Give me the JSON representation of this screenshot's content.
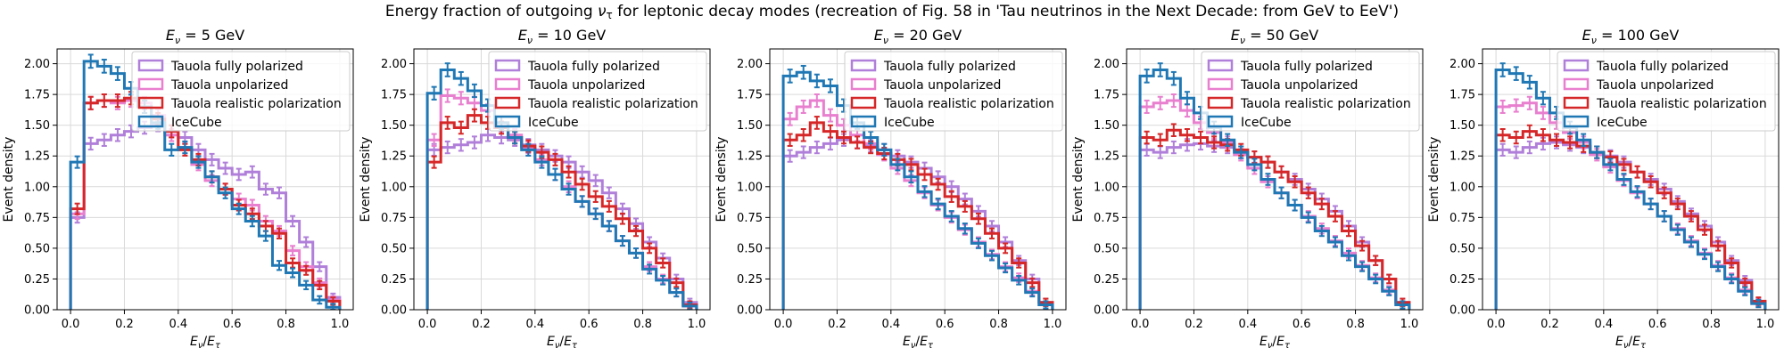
{
  "figure": {
    "suptitle_pre": "Energy fraction of outgoing ",
    "suptitle_nu": "ν",
    "suptitle_sub": "τ",
    "suptitle_post": " for leptonic decay modes (recreation of Fig. 58 in 'Tau neutrinos in the Next Decade: from GeV to EeV')"
  },
  "chart_data": [
    {
      "type": "histogram",
      "title": "E_ν = 5 GeV",
      "title_energy": "5 GeV",
      "xlabel": "E_ν/E_τ",
      "ylabel": "Event density",
      "xlim": [
        -0.05,
        1.05
      ],
      "ylim": [
        0,
        2.12
      ],
      "grid": true,
      "legend_placement": "top-right",
      "xticks": [
        "0.0",
        "0.2",
        "0.4",
        "0.6",
        "0.8",
        "1.0"
      ],
      "yticks": [
        "0.00",
        "0.25",
        "0.50",
        "0.75",
        "1.00",
        "1.25",
        "1.50",
        "1.75",
        "2.00"
      ],
      "bin_edges": [
        0,
        0.05,
        0.1,
        0.15,
        0.2,
        0.25,
        0.3,
        0.35,
        0.4,
        0.45,
        0.5,
        0.55,
        0.6,
        0.65,
        0.7,
        0.75,
        0.8,
        0.85,
        0.9,
        0.95,
        1.0
      ],
      "series": [
        {
          "name": "Tauola fully polarized",
          "color": "#b07fd9",
          "values": [
            0.75,
            1.35,
            1.38,
            1.42,
            1.45,
            1.48,
            1.5,
            1.45,
            1.4,
            1.3,
            1.22,
            1.15,
            1.1,
            1.12,
            0.98,
            0.95,
            0.72,
            0.55,
            0.35,
            0.1
          ]
        },
        {
          "name": "Tauola unpolarized",
          "color": "#e87fcf",
          "values": [
            0.78,
            1.68,
            1.7,
            1.68,
            1.7,
            1.68,
            1.58,
            1.42,
            1.32,
            1.18,
            1.05,
            0.98,
            0.9,
            0.85,
            0.72,
            0.64,
            0.48,
            0.35,
            0.22,
            0.08
          ]
        },
        {
          "name": "Tauola realistic polarization",
          "color": "#d62728",
          "values": [
            0.82,
            1.68,
            1.7,
            1.7,
            1.72,
            1.65,
            1.55,
            1.45,
            1.3,
            1.22,
            1.08,
            0.98,
            0.85,
            0.78,
            0.68,
            0.62,
            0.38,
            0.32,
            0.2,
            0.07
          ]
        },
        {
          "name": "IceCube",
          "color": "#1f77b4",
          "values": [
            1.2,
            2.02,
            1.98,
            1.92,
            1.8,
            1.65,
            1.52,
            1.3,
            1.32,
            1.2,
            1.08,
            0.95,
            0.82,
            0.72,
            0.6,
            0.36,
            0.3,
            0.2,
            0.08,
            0.02
          ]
        }
      ]
    },
    {
      "type": "histogram",
      "title": "E_ν = 10 GeV",
      "title_energy": "10 GeV",
      "xlabel": "E_ν/E_τ",
      "ylabel": "Event density",
      "xlim": [
        -0.05,
        1.05
      ],
      "ylim": [
        0,
        2.12
      ],
      "grid": true,
      "legend_placement": "top-right",
      "xticks": [
        "0.0",
        "0.2",
        "0.4",
        "0.6",
        "0.8",
        "1.0"
      ],
      "yticks": [
        "0.00",
        "0.25",
        "0.50",
        "0.75",
        "1.00",
        "1.25",
        "1.50",
        "1.75",
        "2.00"
      ],
      "bin_edges": [
        0,
        0.05,
        0.1,
        0.15,
        0.2,
        0.25,
        0.3,
        0.35,
        0.4,
        0.45,
        0.5,
        0.55,
        0.6,
        0.65,
        0.7,
        0.75,
        0.8,
        0.85,
        0.9,
        0.95,
        1.0
      ],
      "series": [
        {
          "name": "Tauola fully polarized",
          "color": "#b07fd9",
          "values": [
            1.3,
            1.32,
            1.34,
            1.36,
            1.42,
            1.4,
            1.38,
            1.34,
            1.3,
            1.25,
            1.2,
            1.12,
            1.05,
            0.95,
            0.82,
            0.7,
            0.55,
            0.42,
            0.25,
            0.06
          ]
        },
        {
          "name": "Tauola unpolarized",
          "color": "#e87fcf",
          "values": [
            1.38,
            1.74,
            1.72,
            1.68,
            1.62,
            1.52,
            1.42,
            1.32,
            1.22,
            1.1,
            1.0,
            0.88,
            0.78,
            0.68,
            0.56,
            0.46,
            0.35,
            0.25,
            0.14,
            0.03
          ]
        },
        {
          "name": "Tauola realistic polarization",
          "color": "#d62728",
          "values": [
            1.2,
            1.52,
            1.48,
            1.58,
            1.52,
            1.48,
            1.4,
            1.33,
            1.28,
            1.22,
            1.12,
            1.02,
            0.92,
            0.84,
            0.74,
            0.64,
            0.5,
            0.38,
            0.22,
            0.04
          ]
        },
        {
          "name": "IceCube",
          "color": "#1f77b4",
          "values": [
            1.76,
            1.95,
            1.88,
            1.78,
            1.66,
            1.52,
            1.4,
            1.3,
            1.2,
            1.1,
            0.98,
            0.88,
            0.78,
            0.68,
            0.56,
            0.46,
            0.33,
            0.24,
            0.14,
            0.03
          ]
        }
      ]
    },
    {
      "type": "histogram",
      "title": "E_ν = 20 GeV",
      "title_energy": "20 GeV",
      "xlabel": "E_ν/E_τ",
      "ylabel": "Event density",
      "xlim": [
        -0.05,
        1.05
      ],
      "ylim": [
        0,
        2.12
      ],
      "grid": true,
      "legend_placement": "top-right",
      "xticks": [
        "0.0",
        "0.2",
        "0.4",
        "0.6",
        "0.8",
        "1.0"
      ],
      "yticks": [
        "0.00",
        "0.25",
        "0.50",
        "0.75",
        "1.00",
        "1.25",
        "1.50",
        "1.75",
        "2.00"
      ],
      "bin_edges": [
        0,
        0.05,
        0.1,
        0.15,
        0.2,
        0.25,
        0.3,
        0.35,
        0.4,
        0.45,
        0.5,
        0.55,
        0.6,
        0.65,
        0.7,
        0.75,
        0.8,
        0.85,
        0.9,
        0.95,
        1.0
      ],
      "series": [
        {
          "name": "Tauola fully polarized",
          "color": "#b07fd9",
          "values": [
            1.25,
            1.28,
            1.32,
            1.35,
            1.38,
            1.36,
            1.33,
            1.3,
            1.25,
            1.2,
            1.15,
            1.08,
            1.0,
            0.9,
            0.8,
            0.68,
            0.55,
            0.4,
            0.25,
            0.06
          ]
        },
        {
          "name": "Tauola unpolarized",
          "color": "#e87fcf",
          "values": [
            1.55,
            1.65,
            1.7,
            1.58,
            1.5,
            1.42,
            1.35,
            1.26,
            1.15,
            1.05,
            0.95,
            0.85,
            0.75,
            0.65,
            0.55,
            0.45,
            0.35,
            0.26,
            0.15,
            0.04
          ]
        },
        {
          "name": "Tauola realistic polarization",
          "color": "#d62728",
          "values": [
            1.38,
            1.42,
            1.52,
            1.45,
            1.4,
            1.36,
            1.32,
            1.27,
            1.22,
            1.18,
            1.1,
            1.02,
            0.92,
            0.84,
            0.74,
            0.62,
            0.5,
            0.38,
            0.22,
            0.06
          ]
        },
        {
          "name": "IceCube",
          "color": "#1f77b4",
          "values": [
            1.9,
            1.93,
            1.86,
            1.82,
            1.66,
            1.52,
            1.4,
            1.3,
            1.18,
            1.08,
            0.96,
            0.86,
            0.76,
            0.66,
            0.54,
            0.44,
            0.34,
            0.24,
            0.14,
            0.04
          ]
        }
      ]
    },
    {
      "type": "histogram",
      "title": "E_ν = 50 GeV",
      "title_energy": "50 GeV",
      "xlabel": "E_ν/E_τ",
      "ylabel": "Event density",
      "xlim": [
        -0.05,
        1.05
      ],
      "ylim": [
        0,
        2.12
      ],
      "grid": true,
      "legend_placement": "top-right",
      "xticks": [
        "0.0",
        "0.2",
        "0.4",
        "0.6",
        "0.8",
        "1.0"
      ],
      "yticks": [
        "0.00",
        "0.25",
        "0.50",
        "0.75",
        "1.00",
        "1.25",
        "1.50",
        "1.75",
        "2.00"
      ],
      "bin_edges": [
        0,
        0.05,
        0.1,
        0.15,
        0.2,
        0.25,
        0.3,
        0.35,
        0.4,
        0.45,
        0.5,
        0.55,
        0.6,
        0.65,
        0.7,
        0.75,
        0.8,
        0.85,
        0.9,
        0.95,
        1.0
      ],
      "series": [
        {
          "name": "Tauola fully polarized",
          "color": "#b07fd9",
          "values": [
            1.3,
            1.28,
            1.32,
            1.34,
            1.35,
            1.33,
            1.32,
            1.28,
            1.24,
            1.2,
            1.12,
            1.06,
            0.98,
            0.9,
            0.8,
            0.68,
            0.55,
            0.4,
            0.25,
            0.06
          ]
        },
        {
          "name": "Tauola unpolarized",
          "color": "#e87fcf",
          "values": [
            1.65,
            1.68,
            1.7,
            1.62,
            1.52,
            1.44,
            1.36,
            1.26,
            1.15,
            1.04,
            0.95,
            0.85,
            0.76,
            0.66,
            0.56,
            0.46,
            0.36,
            0.26,
            0.16,
            0.04
          ]
        },
        {
          "name": "Tauola realistic polarization",
          "color": "#d62728",
          "values": [
            1.4,
            1.38,
            1.46,
            1.42,
            1.4,
            1.36,
            1.34,
            1.3,
            1.24,
            1.2,
            1.12,
            1.04,
            0.95,
            0.86,
            0.76,
            0.64,
            0.52,
            0.4,
            0.25,
            0.06
          ]
        },
        {
          "name": "IceCube",
          "color": "#1f77b4",
          "values": [
            1.9,
            1.95,
            1.88,
            1.72,
            1.6,
            1.48,
            1.38,
            1.28,
            1.18,
            1.06,
            0.95,
            0.85,
            0.75,
            0.64,
            0.55,
            0.44,
            0.35,
            0.25,
            0.15,
            0.04
          ]
        }
      ]
    },
    {
      "type": "histogram",
      "title": "E_ν = 100 GeV",
      "title_energy": "100 GeV",
      "xlabel": "E_ν/E_τ",
      "ylabel": "Event density",
      "xlim": [
        -0.05,
        1.05
      ],
      "ylim": [
        0,
        2.12
      ],
      "grid": true,
      "legend_placement": "top-right",
      "xticks": [
        "0.0",
        "0.2",
        "0.4",
        "0.6",
        "0.8",
        "1.0"
      ],
      "yticks": [
        "0.00",
        "0.25",
        "0.50",
        "0.75",
        "1.00",
        "1.25",
        "1.50",
        "1.75",
        "2.00"
      ],
      "bin_edges": [
        0,
        0.05,
        0.1,
        0.15,
        0.2,
        0.25,
        0.3,
        0.35,
        0.4,
        0.45,
        0.5,
        0.55,
        0.6,
        0.65,
        0.7,
        0.75,
        0.8,
        0.85,
        0.9,
        0.95,
        1.0
      ],
      "series": [
        {
          "name": "Tauola fully polarized",
          "color": "#b07fd9",
          "values": [
            1.3,
            1.28,
            1.32,
            1.35,
            1.36,
            1.34,
            1.32,
            1.28,
            1.25,
            1.2,
            1.12,
            1.06,
            0.98,
            0.88,
            0.78,
            0.68,
            0.55,
            0.4,
            0.24,
            0.06
          ]
        },
        {
          "name": "Tauola unpolarized",
          "color": "#e87fcf",
          "values": [
            1.65,
            1.66,
            1.68,
            1.6,
            1.52,
            1.44,
            1.36,
            1.26,
            1.16,
            1.05,
            0.95,
            0.86,
            0.76,
            0.66,
            0.56,
            0.46,
            0.36,
            0.26,
            0.16,
            0.05
          ]
        },
        {
          "name": "Tauola realistic polarization",
          "color": "#d62728",
          "values": [
            1.42,
            1.4,
            1.45,
            1.42,
            1.38,
            1.36,
            1.33,
            1.28,
            1.24,
            1.18,
            1.12,
            1.04,
            0.95,
            0.86,
            0.76,
            0.65,
            0.52,
            0.38,
            0.22,
            0.07
          ]
        },
        {
          "name": "IceCube",
          "color": "#1f77b4",
          "values": [
            1.95,
            1.92,
            1.85,
            1.72,
            1.6,
            1.48,
            1.38,
            1.28,
            1.18,
            1.06,
            0.96,
            0.86,
            0.76,
            0.65,
            0.55,
            0.45,
            0.35,
            0.25,
            0.15,
            0.05
          ]
        }
      ]
    }
  ]
}
